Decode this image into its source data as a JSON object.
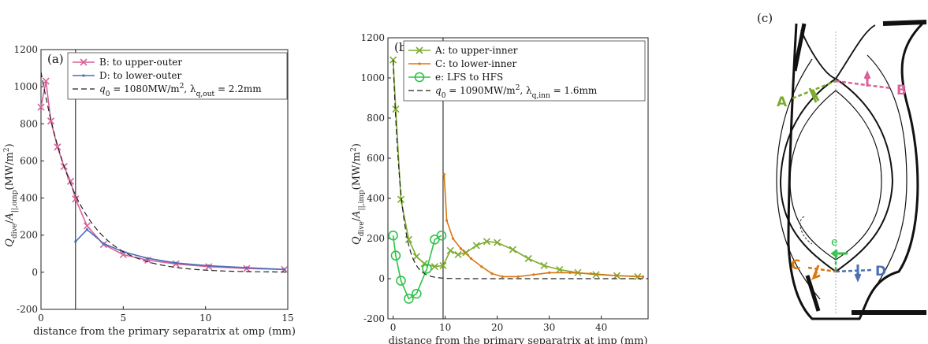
{
  "colors": {
    "pink": "#d9629a",
    "blue": "#4a6fb5",
    "olive": "#7cab2e",
    "orange": "#d9780f",
    "green": "#2fc24a",
    "dash": "#222222"
  },
  "chart_data": [
    {
      "type": "line",
      "panel_tag": "(a)",
      "xlabel": "distance from the primary separatrix at omp (mm)",
      "ylabel": "Q_dive/A_||,omp (MW/m²)",
      "xlim": [
        0,
        15
      ],
      "ylim": [
        -200,
        1200
      ],
      "xticks": [
        0,
        5,
        10,
        15
      ],
      "yticks": [
        -200,
        0,
        200,
        400,
        600,
        800,
        1000,
        1200
      ],
      "vline_x": 2.1,
      "legend": [
        "B: to upper-outer",
        "D: to lower-outer",
        "q0 = 1080MW/m², λq,out = 2.2mm"
      ],
      "series": [
        {
          "name": "B: to upper-outer",
          "color": "pink",
          "marker": "x",
          "x": [
            0.0,
            0.3,
            0.6,
            1.0,
            1.4,
            1.8,
            2.1,
            2.8,
            3.8,
            5.0,
            6.5,
            8.2,
            10.2,
            12.5,
            14.8
          ],
          "y": [
            890,
            1030,
            815,
            675,
            570,
            490,
            395,
            250,
            150,
            95,
            65,
            45,
            30,
            20,
            15
          ]
        },
        {
          "name": "D: to lower-outer",
          "color": "blue",
          "marker": "dot",
          "x": [
            2.1,
            2.8,
            3.8,
            5.0,
            6.5,
            8.2,
            10.2,
            12.5,
            14.8
          ],
          "y": [
            165,
            230,
            155,
            110,
            75,
            50,
            35,
            25,
            15
          ]
        },
        {
          "name": "q0 = 1080MW/m², λq,out = 2.2mm",
          "color": "dash",
          "style": "dashed",
          "q0": 1080,
          "lambda": 2.2
        }
      ]
    },
    {
      "type": "line",
      "panel_tag": "(b)",
      "xlabel": "distance from the primary separatrix at imp (mm)",
      "ylabel": "Q_dive/A_||,imp (MW/m²)",
      "xlim": [
        -1,
        49
      ],
      "ylim": [
        -200,
        1200
      ],
      "xticks": [
        0,
        10,
        20,
        30,
        40
      ],
      "yticks": [
        -200,
        0,
        200,
        400,
        600,
        800,
        1000,
        1200
      ],
      "vline_x": 9.6,
      "legend": [
        "A: to upper-inner",
        "C: to lower-inner",
        "e: LFS to HFS",
        "q0 = 1090MW/m², λq,inn = 1.6mm"
      ],
      "series": [
        {
          "name": "A: to upper-inner",
          "color": "olive",
          "marker": "x",
          "x": [
            0,
            0.5,
            1.5,
            3,
            4.5,
            6,
            8,
            9.6,
            11,
            12.5,
            14,
            16,
            18,
            20,
            23,
            26,
            29,
            32,
            35.5,
            39,
            43,
            47
          ],
          "y": [
            1090,
            845,
            395,
            195,
            110,
            75,
            60,
            65,
            140,
            120,
            130,
            165,
            185,
            180,
            145,
            100,
            65,
            45,
            30,
            20,
            15,
            10
          ]
        },
        {
          "name": "C: to lower-inner",
          "color": "orange",
          "marker": "dot",
          "x": [
            9.8,
            10.3,
            11.5,
            13,
            15,
            17,
            19,
            21,
            24,
            27,
            30,
            34,
            38,
            43,
            48
          ],
          "y": [
            520,
            290,
            200,
            150,
            100,
            60,
            25,
            10,
            10,
            20,
            30,
            30,
            25,
            15,
            10
          ]
        },
        {
          "name": "e: LFS to HFS",
          "color": "green",
          "marker": "circle",
          "x": [
            0,
            0.5,
            1.5,
            3,
            4.5,
            6.5,
            8,
            9.3
          ],
          "y": [
            215,
            115,
            -10,
            -100,
            -75,
            50,
            195,
            215
          ]
        },
        {
          "name": "q0 = 1090MW/m², λq,inn = 1.6mm",
          "color": "dash",
          "style": "dashed",
          "q0": 1090,
          "lambda": 1.6
        }
      ]
    }
  ],
  "diagram": {
    "panel_tag": "(c)",
    "labels": {
      "A": "A",
      "B": "B",
      "C": "C",
      "D": "D",
      "e": "e"
    }
  }
}
